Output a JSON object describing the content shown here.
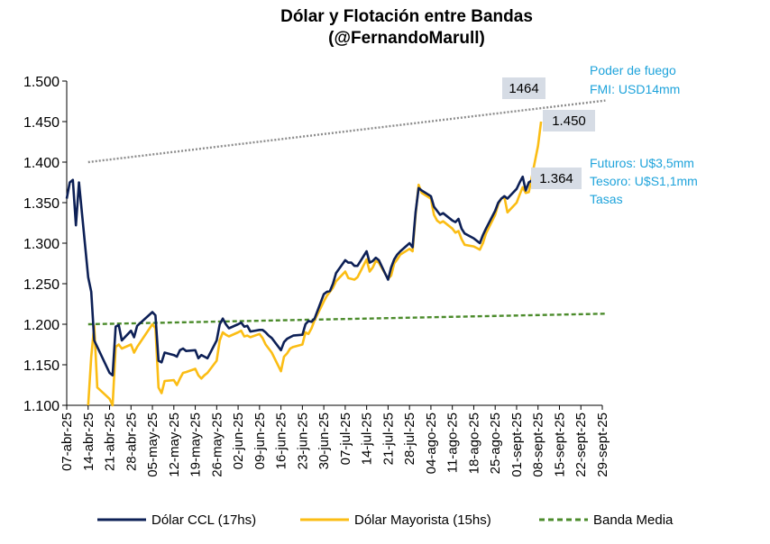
{
  "chart_data": {
    "type": "line",
    "title": "Dólar y Flotación entre Bandas",
    "subtitle": "(@FernandoMarull)",
    "xlabel": "",
    "ylabel": "",
    "ylim": [
      1100,
      1500
    ],
    "y_ticks": [
      1100,
      1150,
      1200,
      1250,
      1300,
      1350,
      1400,
      1450,
      1500
    ],
    "y_tick_labels": [
      "1.100",
      "1.150",
      "1.200",
      "1.250",
      "1.300",
      "1.350",
      "1.400",
      "1.450",
      "1.500"
    ],
    "x_tick_labels": [
      "07-abr-25",
      "14-abr-25",
      "21-abr-25",
      "28-abr-25",
      "05-may-25",
      "12-may-25",
      "19-may-25",
      "26-may-25",
      "02-jun-25",
      "09-jun-25",
      "16-jun-25",
      "23-jun-25",
      "30-jun-25",
      "07-jul-25",
      "14-jul-25",
      "21-jul-25",
      "28-jul-25",
      "04-ago-25",
      "11-ago-25",
      "18-ago-25",
      "25-ago-25",
      "01-sept-25",
      "08-sept-25",
      "15-sept-25",
      "22-sept-25",
      "29-sept-25"
    ],
    "x_start": "2025-04-07",
    "x_end": "2025-09-29",
    "grid": false,
    "legend_position": "bottom",
    "colors": {
      "ccl": "#0d2056",
      "mayorista": "#fbbd14",
      "banda_media": "#4b8b2b",
      "banda_superior": "#8c8c8c",
      "annotation": "#1ea3db",
      "callout_bg": "#d6dce5"
    },
    "series": [
      {
        "name": "Dólar CCL (17hs)",
        "data": [
          [
            "2025-04-07",
            1355
          ],
          [
            "2025-04-08",
            1375
          ],
          [
            "2025-04-09",
            1378
          ],
          [
            "2025-04-10",
            1322
          ],
          [
            "2025-04-11",
            1375
          ],
          [
            "2025-04-14",
            1258
          ],
          [
            "2025-04-15",
            1240
          ],
          [
            "2025-04-16",
            1180
          ],
          [
            "2025-04-21",
            1140
          ],
          [
            "2025-04-22",
            1137
          ],
          [
            "2025-04-23",
            1197
          ],
          [
            "2025-04-24",
            1199
          ],
          [
            "2025-04-25",
            1180
          ],
          [
            "2025-04-28",
            1192
          ],
          [
            "2025-04-29",
            1184
          ],
          [
            "2025-04-30",
            1198
          ],
          [
            "2025-05-05",
            1215
          ],
          [
            "2025-05-06",
            1211
          ],
          [
            "2025-05-07",
            1155
          ],
          [
            "2025-05-08",
            1153
          ],
          [
            "2025-05-09",
            1165
          ],
          [
            "2025-05-12",
            1162
          ],
          [
            "2025-05-13",
            1160
          ],
          [
            "2025-05-14",
            1168
          ],
          [
            "2025-05-15",
            1170
          ],
          [
            "2025-05-16",
            1167
          ],
          [
            "2025-05-19",
            1168
          ],
          [
            "2025-05-20",
            1158
          ],
          [
            "2025-05-21",
            1162
          ],
          [
            "2025-05-22",
            1160
          ],
          [
            "2025-05-23",
            1158
          ],
          [
            "2025-05-26",
            1180
          ],
          [
            "2025-05-27",
            1200
          ],
          [
            "2025-05-28",
            1207
          ],
          [
            "2025-05-29",
            1200
          ],
          [
            "2025-05-30",
            1195
          ],
          [
            "2025-06-02",
            1200
          ],
          [
            "2025-06-03",
            1202
          ],
          [
            "2025-06-04",
            1197
          ],
          [
            "2025-06-05",
            1198
          ],
          [
            "2025-06-06",
            1191
          ],
          [
            "2025-06-09",
            1193
          ],
          [
            "2025-06-10",
            1193
          ],
          [
            "2025-06-11",
            1190
          ],
          [
            "2025-06-12",
            1186
          ],
          [
            "2025-06-13",
            1183
          ],
          [
            "2025-06-16",
            1168
          ],
          [
            "2025-06-17",
            1178
          ],
          [
            "2025-06-18",
            1182
          ],
          [
            "2025-06-19",
            1184
          ],
          [
            "2025-06-20",
            1186
          ],
          [
            "2025-06-23",
            1187
          ],
          [
            "2025-06-24",
            1200
          ],
          [
            "2025-06-25",
            1204
          ],
          [
            "2025-06-26",
            1203
          ],
          [
            "2025-06-27",
            1207
          ],
          [
            "2025-06-30",
            1237
          ],
          [
            "2025-07-01",
            1240
          ],
          [
            "2025-07-02",
            1241
          ],
          [
            "2025-07-03",
            1250
          ],
          [
            "2025-07-04",
            1263
          ],
          [
            "2025-07-07",
            1279
          ],
          [
            "2025-07-08",
            1276
          ],
          [
            "2025-07-09",
            1276
          ],
          [
            "2025-07-10",
            1272
          ],
          [
            "2025-07-11",
            1272
          ],
          [
            "2025-07-14",
            1290
          ],
          [
            "2025-07-15",
            1276
          ],
          [
            "2025-07-16",
            1278
          ],
          [
            "2025-07-17",
            1282
          ],
          [
            "2025-07-18",
            1279
          ],
          [
            "2025-07-21",
            1255
          ],
          [
            "2025-07-22",
            1270
          ],
          [
            "2025-07-23",
            1280
          ],
          [
            "2025-07-24",
            1286
          ],
          [
            "2025-07-25",
            1290
          ],
          [
            "2025-07-28",
            1300
          ],
          [
            "2025-07-29",
            1295
          ],
          [
            "2025-07-30",
            1338
          ],
          [
            "2025-07-31",
            1368
          ],
          [
            "2025-08-01",
            1365
          ],
          [
            "2025-08-04",
            1358
          ],
          [
            "2025-08-05",
            1345
          ],
          [
            "2025-08-06",
            1340
          ],
          [
            "2025-08-07",
            1335
          ],
          [
            "2025-08-08",
            1337
          ],
          [
            "2025-08-11",
            1328
          ],
          [
            "2025-08-12",
            1326
          ],
          [
            "2025-08-13",
            1330
          ],
          [
            "2025-08-14",
            1318
          ],
          [
            "2025-08-15",
            1312
          ],
          [
            "2025-08-18",
            1306
          ],
          [
            "2025-08-19",
            1303
          ],
          [
            "2025-08-20",
            1300
          ],
          [
            "2025-08-21",
            1310
          ],
          [
            "2025-08-22",
            1318
          ],
          [
            "2025-08-25",
            1340
          ],
          [
            "2025-08-26",
            1350
          ],
          [
            "2025-08-27",
            1355
          ],
          [
            "2025-08-28",
            1358
          ],
          [
            "2025-08-29",
            1355
          ],
          [
            "2025-09-01",
            1367
          ],
          [
            "2025-09-02",
            1375
          ],
          [
            "2025-09-03",
            1382
          ],
          [
            "2025-09-04",
            1365
          ],
          [
            "2025-09-05",
            1375
          ],
          [
            "2025-09-08",
            1382
          ]
        ]
      },
      {
        "name": "Dólar Mayorista (15hs)",
        "data": [
          [
            "2025-04-14",
            1100
          ],
          [
            "2025-04-15",
            1160
          ],
          [
            "2025-04-16",
            1198
          ],
          [
            "2025-04-17",
            1122
          ],
          [
            "2025-04-21",
            1108
          ],
          [
            "2025-04-22",
            1100
          ],
          [
            "2025-04-23",
            1172
          ],
          [
            "2025-04-24",
            1175
          ],
          [
            "2025-04-25",
            1170
          ],
          [
            "2025-04-28",
            1175
          ],
          [
            "2025-04-29",
            1165
          ],
          [
            "2025-04-30",
            1172
          ],
          [
            "2025-05-05",
            1200
          ],
          [
            "2025-05-06",
            1195
          ],
          [
            "2025-05-07",
            1122
          ],
          [
            "2025-05-08",
            1115
          ],
          [
            "2025-05-09",
            1130
          ],
          [
            "2025-05-12",
            1131
          ],
          [
            "2025-05-13",
            1125
          ],
          [
            "2025-05-14",
            1133
          ],
          [
            "2025-05-15",
            1140
          ],
          [
            "2025-05-16",
            1141
          ],
          [
            "2025-05-19",
            1145
          ],
          [
            "2025-05-20",
            1137
          ],
          [
            "2025-05-21",
            1133
          ],
          [
            "2025-05-22",
            1137
          ],
          [
            "2025-05-23",
            1140
          ],
          [
            "2025-05-26",
            1155
          ],
          [
            "2025-05-27",
            1180
          ],
          [
            "2025-05-28",
            1190
          ],
          [
            "2025-05-29",
            1187
          ],
          [
            "2025-05-30",
            1185
          ],
          [
            "2025-06-02",
            1190
          ],
          [
            "2025-06-03",
            1192
          ],
          [
            "2025-06-04",
            1185
          ],
          [
            "2025-06-05",
            1186
          ],
          [
            "2025-06-06",
            1184
          ],
          [
            "2025-06-09",
            1188
          ],
          [
            "2025-06-10",
            1183
          ],
          [
            "2025-06-11",
            1175
          ],
          [
            "2025-06-12",
            1170
          ],
          [
            "2025-06-13",
            1165
          ],
          [
            "2025-06-16",
            1142
          ],
          [
            "2025-06-17",
            1160
          ],
          [
            "2025-06-18",
            1164
          ],
          [
            "2025-06-19",
            1170
          ],
          [
            "2025-06-20",
            1172
          ],
          [
            "2025-06-23",
            1175
          ],
          [
            "2025-06-24",
            1190
          ],
          [
            "2025-06-25",
            1188
          ],
          [
            "2025-06-26",
            1195
          ],
          [
            "2025-06-27",
            1205
          ],
          [
            "2025-06-30",
            1228
          ],
          [
            "2025-07-01",
            1235
          ],
          [
            "2025-07-02",
            1240
          ],
          [
            "2025-07-03",
            1245
          ],
          [
            "2025-07-04",
            1253
          ],
          [
            "2025-07-07",
            1265
          ],
          [
            "2025-07-08",
            1257
          ],
          [
            "2025-07-09",
            1256
          ],
          [
            "2025-07-10",
            1255
          ],
          [
            "2025-07-11",
            1258
          ],
          [
            "2025-07-14",
            1280
          ],
          [
            "2025-07-15",
            1265
          ],
          [
            "2025-07-16",
            1270
          ],
          [
            "2025-07-17",
            1278
          ],
          [
            "2025-07-18",
            1276
          ],
          [
            "2025-07-21",
            1256
          ],
          [
            "2025-07-22",
            1260
          ],
          [
            "2025-07-23",
            1275
          ],
          [
            "2025-07-24",
            1280
          ],
          [
            "2025-07-25",
            1286
          ],
          [
            "2025-07-28",
            1293
          ],
          [
            "2025-07-29",
            1290
          ],
          [
            "2025-07-30",
            1335
          ],
          [
            "2025-07-31",
            1372
          ],
          [
            "2025-08-01",
            1362
          ],
          [
            "2025-08-04",
            1355
          ],
          [
            "2025-08-05",
            1335
          ],
          [
            "2025-08-06",
            1328
          ],
          [
            "2025-08-07",
            1325
          ],
          [
            "2025-08-08",
            1327
          ],
          [
            "2025-08-11",
            1318
          ],
          [
            "2025-08-12",
            1313
          ],
          [
            "2025-08-13",
            1315
          ],
          [
            "2025-08-14",
            1305
          ],
          [
            "2025-08-15",
            1298
          ],
          [
            "2025-08-18",
            1296
          ],
          [
            "2025-08-19",
            1294
          ],
          [
            "2025-08-20",
            1292
          ],
          [
            "2025-08-21",
            1300
          ],
          [
            "2025-08-22",
            1312
          ],
          [
            "2025-08-25",
            1335
          ],
          [
            "2025-08-26",
            1348
          ],
          [
            "2025-08-27",
            1355
          ],
          [
            "2025-08-28",
            1357
          ],
          [
            "2025-08-29",
            1338
          ],
          [
            "2025-09-01",
            1350
          ],
          [
            "2025-09-02",
            1360
          ],
          [
            "2025-09-03",
            1369
          ],
          [
            "2025-09-04",
            1362
          ],
          [
            "2025-09-05",
            1363
          ],
          [
            "2025-09-08",
            1420
          ],
          [
            "2025-09-09",
            1450
          ]
        ]
      },
      {
        "name": "Banda Media",
        "data": [
          [
            "2025-04-14",
            1200
          ],
          [
            "2025-09-30",
            1213
          ]
        ]
      },
      {
        "data": [
          [
            "2025-04-14",
            1400
          ],
          [
            "2025-09-30",
            1476
          ]
        ]
      }
    ],
    "annotations": {
      "poder_fuego_1": "Poder de fuego",
      "poder_fuego_2": "FMI: USD14mm",
      "futuros_1": "Futuros: U$3,5mm",
      "futuros_2": "Tesoro: U$S1,1mm",
      "futuros_3": "Tasas"
    },
    "callouts": [
      {
        "label": "1464",
        "x": "2025-09-04",
        "y": 1464
      },
      {
        "label": "1.450",
        "x": "2025-09-09",
        "y": 1450
      },
      {
        "label": "1.364",
        "x": "2025-09-08",
        "y": 1364
      }
    ]
  }
}
